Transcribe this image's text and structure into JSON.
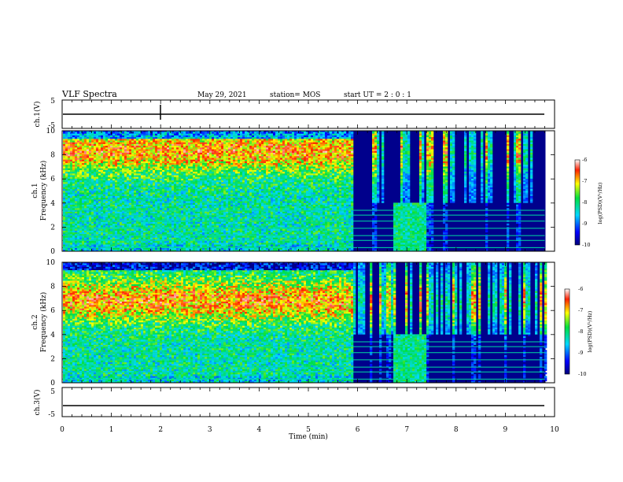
{
  "header": {
    "title": "VLF Spectra",
    "date": "May 29, 2021",
    "station": "station= MOS",
    "start": "start  UT =   2 : 0  : 1"
  },
  "chart_data": [
    {
      "type": "line",
      "name": "ch1-voltage",
      "ylabel": "ch.1(V)",
      "ylim": [
        -5,
        5
      ],
      "yticks": [
        "5",
        "-5"
      ],
      "x": [
        0,
        10
      ],
      "y": [
        0,
        0
      ]
    },
    {
      "type": "heatmap",
      "name": "ch1-spectrogram",
      "ylabel": "ch.1\nFrequency  (kHz)",
      "ylim": [
        0,
        10
      ],
      "yticks": [
        "0",
        "2",
        "4",
        "6",
        "8",
        "10"
      ],
      "xlim": [
        0,
        10
      ],
      "data_end_min": 9.8,
      "transition_min": 5.87,
      "colorbar": {
        "label": "log(PSD)(V²/Hz)",
        "range": [
          -10,
          -6
        ],
        "ticks": [
          "-6",
          "-7",
          "-8",
          "-9",
          "-10"
        ]
      }
    },
    {
      "type": "heatmap",
      "name": "ch2-spectrogram",
      "ylabel": "ch.2\nFrequency  (kHz)",
      "ylim": [
        0,
        10
      ],
      "yticks": [
        "0",
        "2",
        "4",
        "6",
        "8",
        "10"
      ],
      "xlim": [
        0,
        10
      ],
      "data_end_min": 9.8,
      "transition_min": 5.87,
      "colorbar": {
        "label": "log(PSD)(V²/Hz)",
        "range": [
          -10,
          -6
        ],
        "ticks": [
          "-6",
          "-7",
          "-8",
          "-9",
          "-10"
        ]
      }
    },
    {
      "type": "line",
      "name": "ch3-voltage",
      "ylabel": "ch.3(V)",
      "ylim": [
        -5,
        5
      ],
      "yticks": [
        "5",
        "-5"
      ],
      "x": [
        0,
        10
      ],
      "y": [
        -1.2,
        -1.2
      ]
    }
  ],
  "xaxis": {
    "label": "Time  (min)",
    "range": [
      0,
      10
    ],
    "ticks": [
      "0",
      "1",
      "2",
      "3",
      "4",
      "5",
      "6",
      "7",
      "8",
      "9",
      "10"
    ]
  },
  "colors": {
    "low": "#00007a",
    "mid_low": "#00c8ff",
    "mid": "#00e040",
    "mid_high": "#ffff00",
    "high": "#ff2000"
  }
}
